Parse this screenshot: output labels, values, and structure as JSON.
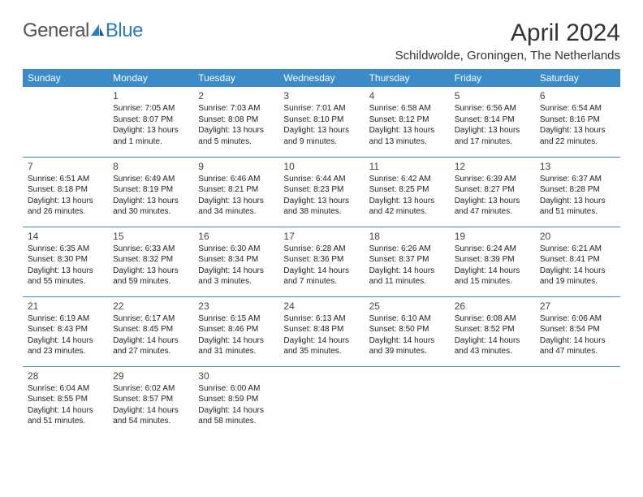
{
  "logo": {
    "text1": "General",
    "text2": "Blue"
  },
  "title": "April 2024",
  "location": "Schildwolde, Groningen, The Netherlands",
  "colors": {
    "header_bg": "#3b8bc9",
    "header_fg": "#ffffff",
    "text": "#222222",
    "title": "#333333",
    "logo_gray": "#555555",
    "logo_blue": "#2e7bbf",
    "divider": "#3b8bc9",
    "page_bg": "#ffffff"
  },
  "weekdays": [
    "Sunday",
    "Monday",
    "Tuesday",
    "Wednesday",
    "Thursday",
    "Friday",
    "Saturday"
  ],
  "weeks": [
    [
      null,
      {
        "n": "1",
        "sr": "Sunrise: 7:05 AM",
        "ss": "Sunset: 8:07 PM",
        "d1": "Daylight: 13 hours",
        "d2": "and 1 minute."
      },
      {
        "n": "2",
        "sr": "Sunrise: 7:03 AM",
        "ss": "Sunset: 8:08 PM",
        "d1": "Daylight: 13 hours",
        "d2": "and 5 minutes."
      },
      {
        "n": "3",
        "sr": "Sunrise: 7:01 AM",
        "ss": "Sunset: 8:10 PM",
        "d1": "Daylight: 13 hours",
        "d2": "and 9 minutes."
      },
      {
        "n": "4",
        "sr": "Sunrise: 6:58 AM",
        "ss": "Sunset: 8:12 PM",
        "d1": "Daylight: 13 hours",
        "d2": "and 13 minutes."
      },
      {
        "n": "5",
        "sr": "Sunrise: 6:56 AM",
        "ss": "Sunset: 8:14 PM",
        "d1": "Daylight: 13 hours",
        "d2": "and 17 minutes."
      },
      {
        "n": "6",
        "sr": "Sunrise: 6:54 AM",
        "ss": "Sunset: 8:16 PM",
        "d1": "Daylight: 13 hours",
        "d2": "and 22 minutes."
      }
    ],
    [
      {
        "n": "7",
        "sr": "Sunrise: 6:51 AM",
        "ss": "Sunset: 8:18 PM",
        "d1": "Daylight: 13 hours",
        "d2": "and 26 minutes."
      },
      {
        "n": "8",
        "sr": "Sunrise: 6:49 AM",
        "ss": "Sunset: 8:19 PM",
        "d1": "Daylight: 13 hours",
        "d2": "and 30 minutes."
      },
      {
        "n": "9",
        "sr": "Sunrise: 6:46 AM",
        "ss": "Sunset: 8:21 PM",
        "d1": "Daylight: 13 hours",
        "d2": "and 34 minutes."
      },
      {
        "n": "10",
        "sr": "Sunrise: 6:44 AM",
        "ss": "Sunset: 8:23 PM",
        "d1": "Daylight: 13 hours",
        "d2": "and 38 minutes."
      },
      {
        "n": "11",
        "sr": "Sunrise: 6:42 AM",
        "ss": "Sunset: 8:25 PM",
        "d1": "Daylight: 13 hours",
        "d2": "and 42 minutes."
      },
      {
        "n": "12",
        "sr": "Sunrise: 6:39 AM",
        "ss": "Sunset: 8:27 PM",
        "d1": "Daylight: 13 hours",
        "d2": "and 47 minutes."
      },
      {
        "n": "13",
        "sr": "Sunrise: 6:37 AM",
        "ss": "Sunset: 8:28 PM",
        "d1": "Daylight: 13 hours",
        "d2": "and 51 minutes."
      }
    ],
    [
      {
        "n": "14",
        "sr": "Sunrise: 6:35 AM",
        "ss": "Sunset: 8:30 PM",
        "d1": "Daylight: 13 hours",
        "d2": "and 55 minutes."
      },
      {
        "n": "15",
        "sr": "Sunrise: 6:33 AM",
        "ss": "Sunset: 8:32 PM",
        "d1": "Daylight: 13 hours",
        "d2": "and 59 minutes."
      },
      {
        "n": "16",
        "sr": "Sunrise: 6:30 AM",
        "ss": "Sunset: 8:34 PM",
        "d1": "Daylight: 14 hours",
        "d2": "and 3 minutes."
      },
      {
        "n": "17",
        "sr": "Sunrise: 6:28 AM",
        "ss": "Sunset: 8:36 PM",
        "d1": "Daylight: 14 hours",
        "d2": "and 7 minutes."
      },
      {
        "n": "18",
        "sr": "Sunrise: 6:26 AM",
        "ss": "Sunset: 8:37 PM",
        "d1": "Daylight: 14 hours",
        "d2": "and 11 minutes."
      },
      {
        "n": "19",
        "sr": "Sunrise: 6:24 AM",
        "ss": "Sunset: 8:39 PM",
        "d1": "Daylight: 14 hours",
        "d2": "and 15 minutes."
      },
      {
        "n": "20",
        "sr": "Sunrise: 6:21 AM",
        "ss": "Sunset: 8:41 PM",
        "d1": "Daylight: 14 hours",
        "d2": "and 19 minutes."
      }
    ],
    [
      {
        "n": "21",
        "sr": "Sunrise: 6:19 AM",
        "ss": "Sunset: 8:43 PM",
        "d1": "Daylight: 14 hours",
        "d2": "and 23 minutes."
      },
      {
        "n": "22",
        "sr": "Sunrise: 6:17 AM",
        "ss": "Sunset: 8:45 PM",
        "d1": "Daylight: 14 hours",
        "d2": "and 27 minutes."
      },
      {
        "n": "23",
        "sr": "Sunrise: 6:15 AM",
        "ss": "Sunset: 8:46 PM",
        "d1": "Daylight: 14 hours",
        "d2": "and 31 minutes."
      },
      {
        "n": "24",
        "sr": "Sunrise: 6:13 AM",
        "ss": "Sunset: 8:48 PM",
        "d1": "Daylight: 14 hours",
        "d2": "and 35 minutes."
      },
      {
        "n": "25",
        "sr": "Sunrise: 6:10 AM",
        "ss": "Sunset: 8:50 PM",
        "d1": "Daylight: 14 hours",
        "d2": "and 39 minutes."
      },
      {
        "n": "26",
        "sr": "Sunrise: 6:08 AM",
        "ss": "Sunset: 8:52 PM",
        "d1": "Daylight: 14 hours",
        "d2": "and 43 minutes."
      },
      {
        "n": "27",
        "sr": "Sunrise: 6:06 AM",
        "ss": "Sunset: 8:54 PM",
        "d1": "Daylight: 14 hours",
        "d2": "and 47 minutes."
      }
    ],
    [
      {
        "n": "28",
        "sr": "Sunrise: 6:04 AM",
        "ss": "Sunset: 8:55 PM",
        "d1": "Daylight: 14 hours",
        "d2": "and 51 minutes."
      },
      {
        "n": "29",
        "sr": "Sunrise: 6:02 AM",
        "ss": "Sunset: 8:57 PM",
        "d1": "Daylight: 14 hours",
        "d2": "and 54 minutes."
      },
      {
        "n": "30",
        "sr": "Sunrise: 6:00 AM",
        "ss": "Sunset: 8:59 PM",
        "d1": "Daylight: 14 hours",
        "d2": "and 58 minutes."
      },
      null,
      null,
      null,
      null
    ]
  ]
}
